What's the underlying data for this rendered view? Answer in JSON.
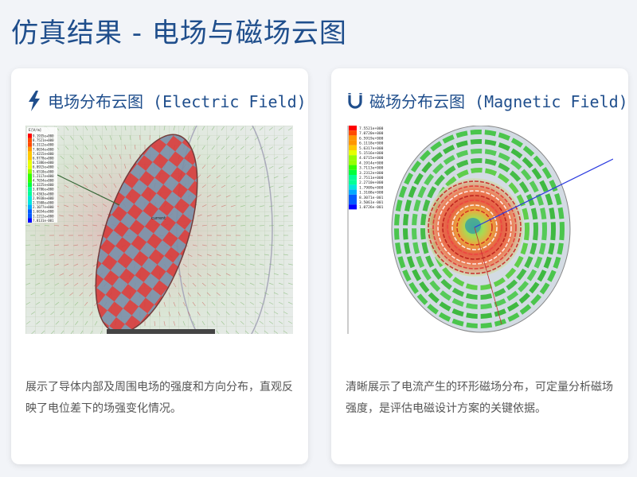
{
  "page": {
    "title": "仿真结果 - 电场与磁场云图"
  },
  "cards": [
    {
      "title": "电场分布云图 (Electric Field)",
      "icon": "lightning-bolt-icon",
      "image": {
        "legend_title": "E[V/m]",
        "legend_values": [
          "9.1935e+000",
          "8.7521e+000",
          "8.3112e+000",
          "7.8654e+000",
          "7.4215e+000",
          "6.9778e+000",
          "6.5386e+000",
          "6.0915e+000",
          "5.6510e+000",
          "5.2117e+000",
          "4.7654e+000",
          "4.3225e+000",
          "3.8786e+000",
          "3.4363e+000",
          "2.9938e+000",
          "2.5508e+000",
          "2.1077e+000",
          "1.6654e+000",
          "1.2212e+000",
          "7.8131e-001"
        ],
        "center_label": "current"
      },
      "description": "展示了导体内部及周围电场的强度和方向分布，直观反映了电位差下的场强变化情况。"
    },
    {
      "title": "磁场分布云图 (Magnetic Field)",
      "icon": "magnet-icon",
      "image": {
        "legend_values": [
          "7.5521e+000",
          "7.0720e+000",
          "6.5919e+000",
          "6.1118e+000",
          "5.6317e+000",
          "5.1516e+000",
          "4.6715e+000",
          "4.1914e+000",
          "3.7113e+000",
          "3.2312e+000",
          "2.7511e+000",
          "2.2710e+000",
          "1.7909e+000",
          "1.3108e+000",
          "8.3071e-001",
          "3.5061e-001",
          "1.0726e-001"
        ]
      },
      "description": "清晰展示了电流产生的环形磁场分布，可定量分析磁场强度，是评估电磁设计方案的关键依据。"
    }
  ],
  "colors": {
    "title": "#1f4e8c",
    "legend_scale": [
      "#ff0000",
      "#ff4b00",
      "#ff9600",
      "#ffc800",
      "#e6ff00",
      "#96ff00",
      "#32ff00",
      "#00ff3c",
      "#00ff96",
      "#00e6dc",
      "#00aaff",
      "#005aff",
      "#0000ff"
    ]
  }
}
